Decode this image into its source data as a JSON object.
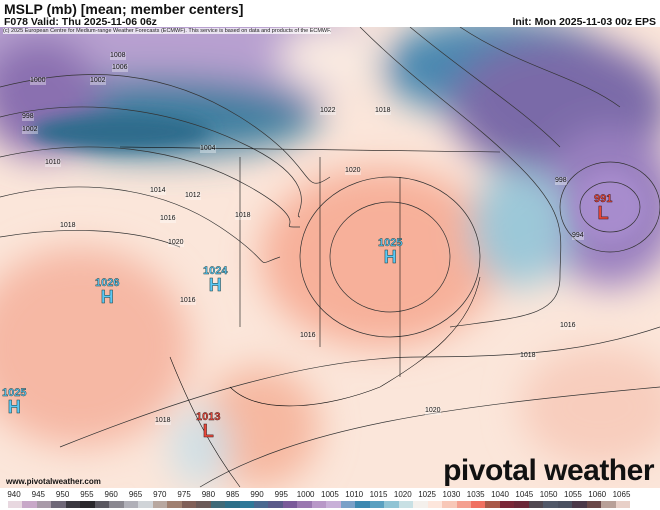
{
  "header": {
    "title": "MSLP (mb) [mean; member centers]",
    "valid": "F078 Valid: Thu 2025-11-06 06z",
    "init": "Init: Mon 2025-11-03 00z EPS",
    "copyright": "(c) 2025 European Centre for Medium-range Weather Forecasts (ECMWF). This service is based on data and products of the ECMWF."
  },
  "footer": {
    "site": "www.pivotalweather.com",
    "logo": "pivotal weather"
  },
  "centers": [
    {
      "type": "H",
      "value": "1026",
      "color": "#5bc8f5"
    },
    {
      "type": "H",
      "value": "1024",
      "color": "#5bc8f5"
    },
    {
      "type": "H",
      "value": "1025",
      "color": "#5bc8f5"
    },
    {
      "type": "H",
      "value": "1025",
      "color": "#5bc8f5"
    },
    {
      "type": "L",
      "value": "1013",
      "color": "#e8483a"
    },
    {
      "type": "L",
      "value": "991",
      "color": "#e8483a"
    }
  ],
  "isobar_labels": [
    "1008",
    "1006",
    "1002",
    "1000",
    "998",
    "1002",
    "1004",
    "1010",
    "1012",
    "1014",
    "1016",
    "1018",
    "1020",
    "1022",
    "1018",
    "1016",
    "1020",
    "1018",
    "1016",
    "1018",
    "1020",
    "1018",
    "1016",
    "998",
    "994"
  ],
  "colorbar": {
    "ticks": [
      "940",
      "945",
      "950",
      "955",
      "960",
      "965",
      "970",
      "975",
      "980",
      "985",
      "990",
      "995",
      "1000",
      "1005",
      "1010",
      "1015",
      "1020",
      "1025",
      "1030",
      "1035",
      "1040",
      "1045",
      "1050",
      "1055",
      "1060",
      "1065"
    ],
    "colors": [
      "#e8d8e0",
      "#c8a8c8",
      "#a89aa8",
      "#6f6878",
      "#3a3840",
      "#2a282c",
      "#5a5860",
      "#8a8890",
      "#b0b0b8",
      "#d0d4d8",
      "#b8a8a0",
      "#a08070",
      "#806058",
      "#6a5a58",
      "#3f6a78",
      "#2c6f88",
      "#2f7898",
      "#4a6890",
      "#5a5a8a",
      "#7a5a9a",
      "#9a78b0",
      "#b898c8",
      "#c8b0d8",
      "#7aa0c8",
      "#3c88b0",
      "#5aa0c0",
      "#90c4d4",
      "#c8e0e4",
      "#f4f0ec",
      "#fde6dc",
      "#f8c8b8",
      "#f4a090",
      "#f07060",
      "#a85848",
      "#7a2838",
      "#6a2838",
      "#504850",
      "#505868",
      "#4a5060",
      "#4a3848",
      "#6a4848",
      "#b8a098",
      "#e8d0c8"
    ]
  }
}
